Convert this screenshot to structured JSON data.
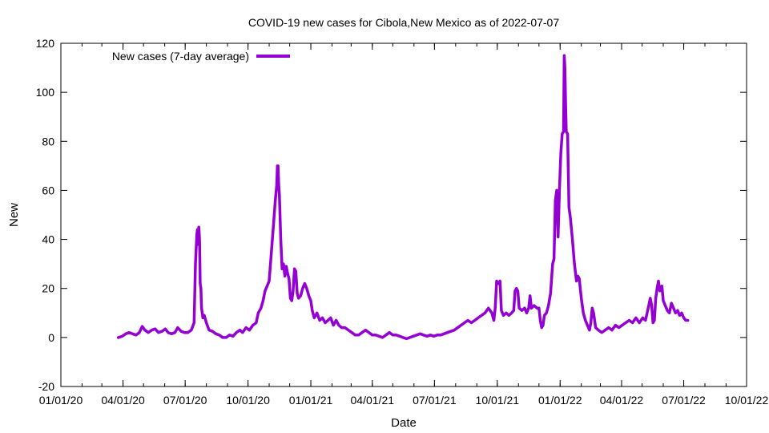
{
  "chart_data": {
    "type": "line",
    "title": "COVID-19 new cases for Cibola,New Mexico as of 2022-07-07",
    "xlabel": "Date",
    "ylabel": "New",
    "ylim": [
      -20,
      120
    ],
    "xlim": [
      "2020-01-01",
      "2022-10-01"
    ],
    "yticks": [
      -20,
      0,
      20,
      40,
      60,
      80,
      100,
      120
    ],
    "xticks": [
      {
        "date": "2020-01-01",
        "label": "01/01/20"
      },
      {
        "date": "2020-04-01",
        "label": "04/01/20"
      },
      {
        "date": "2020-07-01",
        "label": "07/01/20"
      },
      {
        "date": "2020-10-01",
        "label": "10/01/20"
      },
      {
        "date": "2021-01-01",
        "label": "01/01/21"
      },
      {
        "date": "2021-04-01",
        "label": "04/01/21"
      },
      {
        "date": "2021-07-01",
        "label": "07/01/21"
      },
      {
        "date": "2021-10-01",
        "label": "10/01/21"
      },
      {
        "date": "2022-01-01",
        "label": "01/01/22"
      },
      {
        "date": "2022-04-01",
        "label": "04/01/22"
      },
      {
        "date": "2022-07-01",
        "label": "07/01/22"
      },
      {
        "date": "2022-10-01",
        "label": "10/01/22"
      }
    ],
    "grid": false,
    "legend_position": "top-left",
    "series": [
      {
        "name": "New cases (7-day average)",
        "color": "#9400d3",
        "points": [
          [
            "2020-03-25",
            0
          ],
          [
            "2020-03-31",
            0.5
          ],
          [
            "2020-04-05",
            1.5
          ],
          [
            "2020-04-10",
            2
          ],
          [
            "2020-04-15",
            1.5
          ],
          [
            "2020-04-20",
            1
          ],
          [
            "2020-04-25",
            2
          ],
          [
            "2020-04-29",
            4.5
          ],
          [
            "2020-05-03",
            3
          ],
          [
            "2020-05-08",
            2
          ],
          [
            "2020-05-13",
            3
          ],
          [
            "2020-05-18",
            3.5
          ],
          [
            "2020-05-23",
            2
          ],
          [
            "2020-05-28",
            2.5
          ],
          [
            "2020-06-02",
            3.5
          ],
          [
            "2020-06-06",
            2
          ],
          [
            "2020-06-11",
            1.5
          ],
          [
            "2020-06-16",
            2
          ],
          [
            "2020-06-20",
            4
          ],
          [
            "2020-06-25",
            2.5
          ],
          [
            "2020-06-30",
            2
          ],
          [
            "2020-07-05",
            2
          ],
          [
            "2020-07-10",
            3
          ],
          [
            "2020-07-14",
            6
          ],
          [
            "2020-07-16",
            30
          ],
          [
            "2020-07-18",
            42
          ],
          [
            "2020-07-19",
            44
          ],
          [
            "2020-07-20",
            38
          ],
          [
            "2020-07-21",
            45
          ],
          [
            "2020-07-22",
            40
          ],
          [
            "2020-07-23",
            22
          ],
          [
            "2020-07-24",
            20
          ],
          [
            "2020-07-25",
            12
          ],
          [
            "2020-07-27",
            8
          ],
          [
            "2020-07-29",
            9
          ],
          [
            "2020-08-01",
            6
          ],
          [
            "2020-08-05",
            3
          ],
          [
            "2020-08-10",
            2.5
          ],
          [
            "2020-08-15",
            1.5
          ],
          [
            "2020-08-20",
            1
          ],
          [
            "2020-08-25",
            0
          ],
          [
            "2020-08-30",
            0
          ],
          [
            "2020-09-04",
            1
          ],
          [
            "2020-09-09",
            0.5
          ],
          [
            "2020-09-14",
            2
          ],
          [
            "2020-09-19",
            3
          ],
          [
            "2020-09-23",
            2
          ],
          [
            "2020-09-28",
            4
          ],
          [
            "2020-10-03",
            3
          ],
          [
            "2020-10-08",
            5
          ],
          [
            "2020-10-13",
            6
          ],
          [
            "2020-10-16",
            10
          ],
          [
            "2020-10-20",
            12
          ],
          [
            "2020-10-23",
            15
          ],
          [
            "2020-10-26",
            19
          ],
          [
            "2020-10-29",
            21
          ],
          [
            "2020-11-01",
            23
          ],
          [
            "2020-11-04",
            34
          ],
          [
            "2020-11-07",
            45
          ],
          [
            "2020-11-10",
            56
          ],
          [
            "2020-11-12",
            62
          ],
          [
            "2020-11-13",
            70
          ],
          [
            "2020-11-14",
            70
          ],
          [
            "2020-11-15",
            62
          ],
          [
            "2020-11-16",
            58
          ],
          [
            "2020-11-18",
            40
          ],
          [
            "2020-11-20",
            28
          ],
          [
            "2020-11-22",
            30
          ],
          [
            "2020-11-24",
            25
          ],
          [
            "2020-11-26",
            29
          ],
          [
            "2020-11-28",
            26
          ],
          [
            "2020-11-30",
            24
          ],
          [
            "2020-12-02",
            16
          ],
          [
            "2020-12-04",
            15
          ],
          [
            "2020-12-06",
            19
          ],
          [
            "2020-12-08",
            28
          ],
          [
            "2020-12-10",
            27
          ],
          [
            "2020-12-12",
            18
          ],
          [
            "2020-12-14",
            16
          ],
          [
            "2020-12-17",
            17
          ],
          [
            "2020-12-20",
            20
          ],
          [
            "2020-12-23",
            22
          ],
          [
            "2020-12-26",
            20
          ],
          [
            "2020-12-29",
            17
          ],
          [
            "2021-01-01",
            15
          ],
          [
            "2021-01-03",
            11
          ],
          [
            "2021-01-06",
            8
          ],
          [
            "2021-01-10",
            10
          ],
          [
            "2021-01-14",
            7
          ],
          [
            "2021-01-18",
            8
          ],
          [
            "2021-01-22",
            6
          ],
          [
            "2021-01-26",
            7
          ],
          [
            "2021-01-30",
            8
          ],
          [
            "2021-02-03",
            5
          ],
          [
            "2021-02-07",
            7
          ],
          [
            "2021-02-11",
            5
          ],
          [
            "2021-02-15",
            4
          ],
          [
            "2021-02-20",
            4
          ],
          [
            "2021-02-25",
            3
          ],
          [
            "2021-03-02",
            2
          ],
          [
            "2021-03-07",
            1
          ],
          [
            "2021-03-12",
            1
          ],
          [
            "2021-03-17",
            2
          ],
          [
            "2021-03-22",
            3
          ],
          [
            "2021-03-27",
            2
          ],
          [
            "2021-04-01",
            1
          ],
          [
            "2021-04-06",
            1
          ],
          [
            "2021-04-11",
            0.5
          ],
          [
            "2021-04-16",
            0
          ],
          [
            "2021-04-21",
            1
          ],
          [
            "2021-04-26",
            2
          ],
          [
            "2021-05-01",
            1
          ],
          [
            "2021-05-06",
            1
          ],
          [
            "2021-05-11",
            0.5
          ],
          [
            "2021-05-16",
            0
          ],
          [
            "2021-05-21",
            -0.5
          ],
          [
            "2021-05-26",
            0
          ],
          [
            "2021-05-31",
            0.5
          ],
          [
            "2021-06-05",
            1
          ],
          [
            "2021-06-10",
            1.5
          ],
          [
            "2021-06-15",
            1
          ],
          [
            "2021-06-20",
            0.5
          ],
          [
            "2021-06-25",
            1
          ],
          [
            "2021-06-30",
            0.5
          ],
          [
            "2021-07-05",
            1
          ],
          [
            "2021-07-10",
            1
          ],
          [
            "2021-07-15",
            1.5
          ],
          [
            "2021-07-20",
            2
          ],
          [
            "2021-07-25",
            2.5
          ],
          [
            "2021-07-30",
            3
          ],
          [
            "2021-08-04",
            4
          ],
          [
            "2021-08-09",
            5
          ],
          [
            "2021-08-14",
            6
          ],
          [
            "2021-08-19",
            7
          ],
          [
            "2021-08-24",
            6
          ],
          [
            "2021-08-29",
            7
          ],
          [
            "2021-09-03",
            8
          ],
          [
            "2021-09-08",
            9
          ],
          [
            "2021-09-13",
            10
          ],
          [
            "2021-09-18",
            12
          ],
          [
            "2021-09-23",
            10
          ],
          [
            "2021-09-26",
            7
          ],
          [
            "2021-09-28",
            12
          ],
          [
            "2021-09-30",
            23
          ],
          [
            "2021-10-03",
            22
          ],
          [
            "2021-10-05",
            23
          ],
          [
            "2021-10-07",
            11
          ],
          [
            "2021-10-10",
            9
          ],
          [
            "2021-10-14",
            10
          ],
          [
            "2021-10-18",
            9
          ],
          [
            "2021-10-22",
            10
          ],
          [
            "2021-10-25",
            11
          ],
          [
            "2021-10-27",
            19
          ],
          [
            "2021-10-29",
            20
          ],
          [
            "2021-10-31",
            19
          ],
          [
            "2021-11-02",
            12
          ],
          [
            "2021-11-06",
            11
          ],
          [
            "2021-11-10",
            12
          ],
          [
            "2021-11-13",
            10
          ],
          [
            "2021-11-16",
            12
          ],
          [
            "2021-11-18",
            17
          ],
          [
            "2021-11-20",
            12
          ],
          [
            "2021-11-24",
            13
          ],
          [
            "2021-11-28",
            12
          ],
          [
            "2021-12-01",
            12
          ],
          [
            "2021-12-03",
            7
          ],
          [
            "2021-12-05",
            4
          ],
          [
            "2021-12-07",
            5
          ],
          [
            "2021-12-09",
            9
          ],
          [
            "2021-12-12",
            10
          ],
          [
            "2021-12-15",
            13
          ],
          [
            "2021-12-18",
            18
          ],
          [
            "2021-12-21",
            30
          ],
          [
            "2021-12-23",
            32
          ],
          [
            "2021-12-25",
            56
          ],
          [
            "2021-12-27",
            60
          ],
          [
            "2021-12-29",
            41
          ],
          [
            "2021-12-31",
            60
          ],
          [
            "2022-01-02",
            75
          ],
          [
            "2022-01-04",
            83
          ],
          [
            "2022-01-06",
            84
          ],
          [
            "2022-01-07",
            115
          ],
          [
            "2022-01-08",
            110
          ],
          [
            "2022-01-09",
            95
          ],
          [
            "2022-01-10",
            84
          ],
          [
            "2022-01-12",
            83
          ],
          [
            "2022-01-14",
            53
          ],
          [
            "2022-01-16",
            49
          ],
          [
            "2022-01-19",
            40
          ],
          [
            "2022-01-22",
            30
          ],
          [
            "2022-01-25",
            23
          ],
          [
            "2022-01-27",
            25
          ],
          [
            "2022-01-29",
            24
          ],
          [
            "2022-02-01",
            16
          ],
          [
            "2022-02-04",
            10
          ],
          [
            "2022-02-07",
            7
          ],
          [
            "2022-02-10",
            5
          ],
          [
            "2022-02-13",
            3
          ],
          [
            "2022-02-15",
            6
          ],
          [
            "2022-02-17",
            12
          ],
          [
            "2022-02-19",
            10
          ],
          [
            "2022-02-22",
            4
          ],
          [
            "2022-02-26",
            3
          ],
          [
            "2022-03-03",
            2
          ],
          [
            "2022-03-08",
            3
          ],
          [
            "2022-03-13",
            4
          ],
          [
            "2022-03-18",
            3
          ],
          [
            "2022-03-23",
            5
          ],
          [
            "2022-03-28",
            4
          ],
          [
            "2022-04-02",
            5
          ],
          [
            "2022-04-07",
            6
          ],
          [
            "2022-04-12",
            7
          ],
          [
            "2022-04-17",
            6
          ],
          [
            "2022-04-22",
            8
          ],
          [
            "2022-04-27",
            6
          ],
          [
            "2022-05-02",
            8
          ],
          [
            "2022-05-06",
            7
          ],
          [
            "2022-05-10",
            12
          ],
          [
            "2022-05-13",
            16
          ],
          [
            "2022-05-15",
            13
          ],
          [
            "2022-05-17",
            6
          ],
          [
            "2022-05-19",
            7
          ],
          [
            "2022-05-21",
            16
          ],
          [
            "2022-05-23",
            20
          ],
          [
            "2022-05-25",
            23
          ],
          [
            "2022-05-27",
            19
          ],
          [
            "2022-05-30",
            21
          ],
          [
            "2022-06-01",
            15
          ],
          [
            "2022-06-04",
            13
          ],
          [
            "2022-06-07",
            11
          ],
          [
            "2022-06-10",
            10
          ],
          [
            "2022-06-13",
            14
          ],
          [
            "2022-06-16",
            12
          ],
          [
            "2022-06-19",
            10
          ],
          [
            "2022-06-22",
            11
          ],
          [
            "2022-06-25",
            9
          ],
          [
            "2022-06-28",
            10
          ],
          [
            "2022-07-01",
            8
          ],
          [
            "2022-07-04",
            7
          ],
          [
            "2022-07-07",
            7
          ]
        ]
      }
    ]
  }
}
